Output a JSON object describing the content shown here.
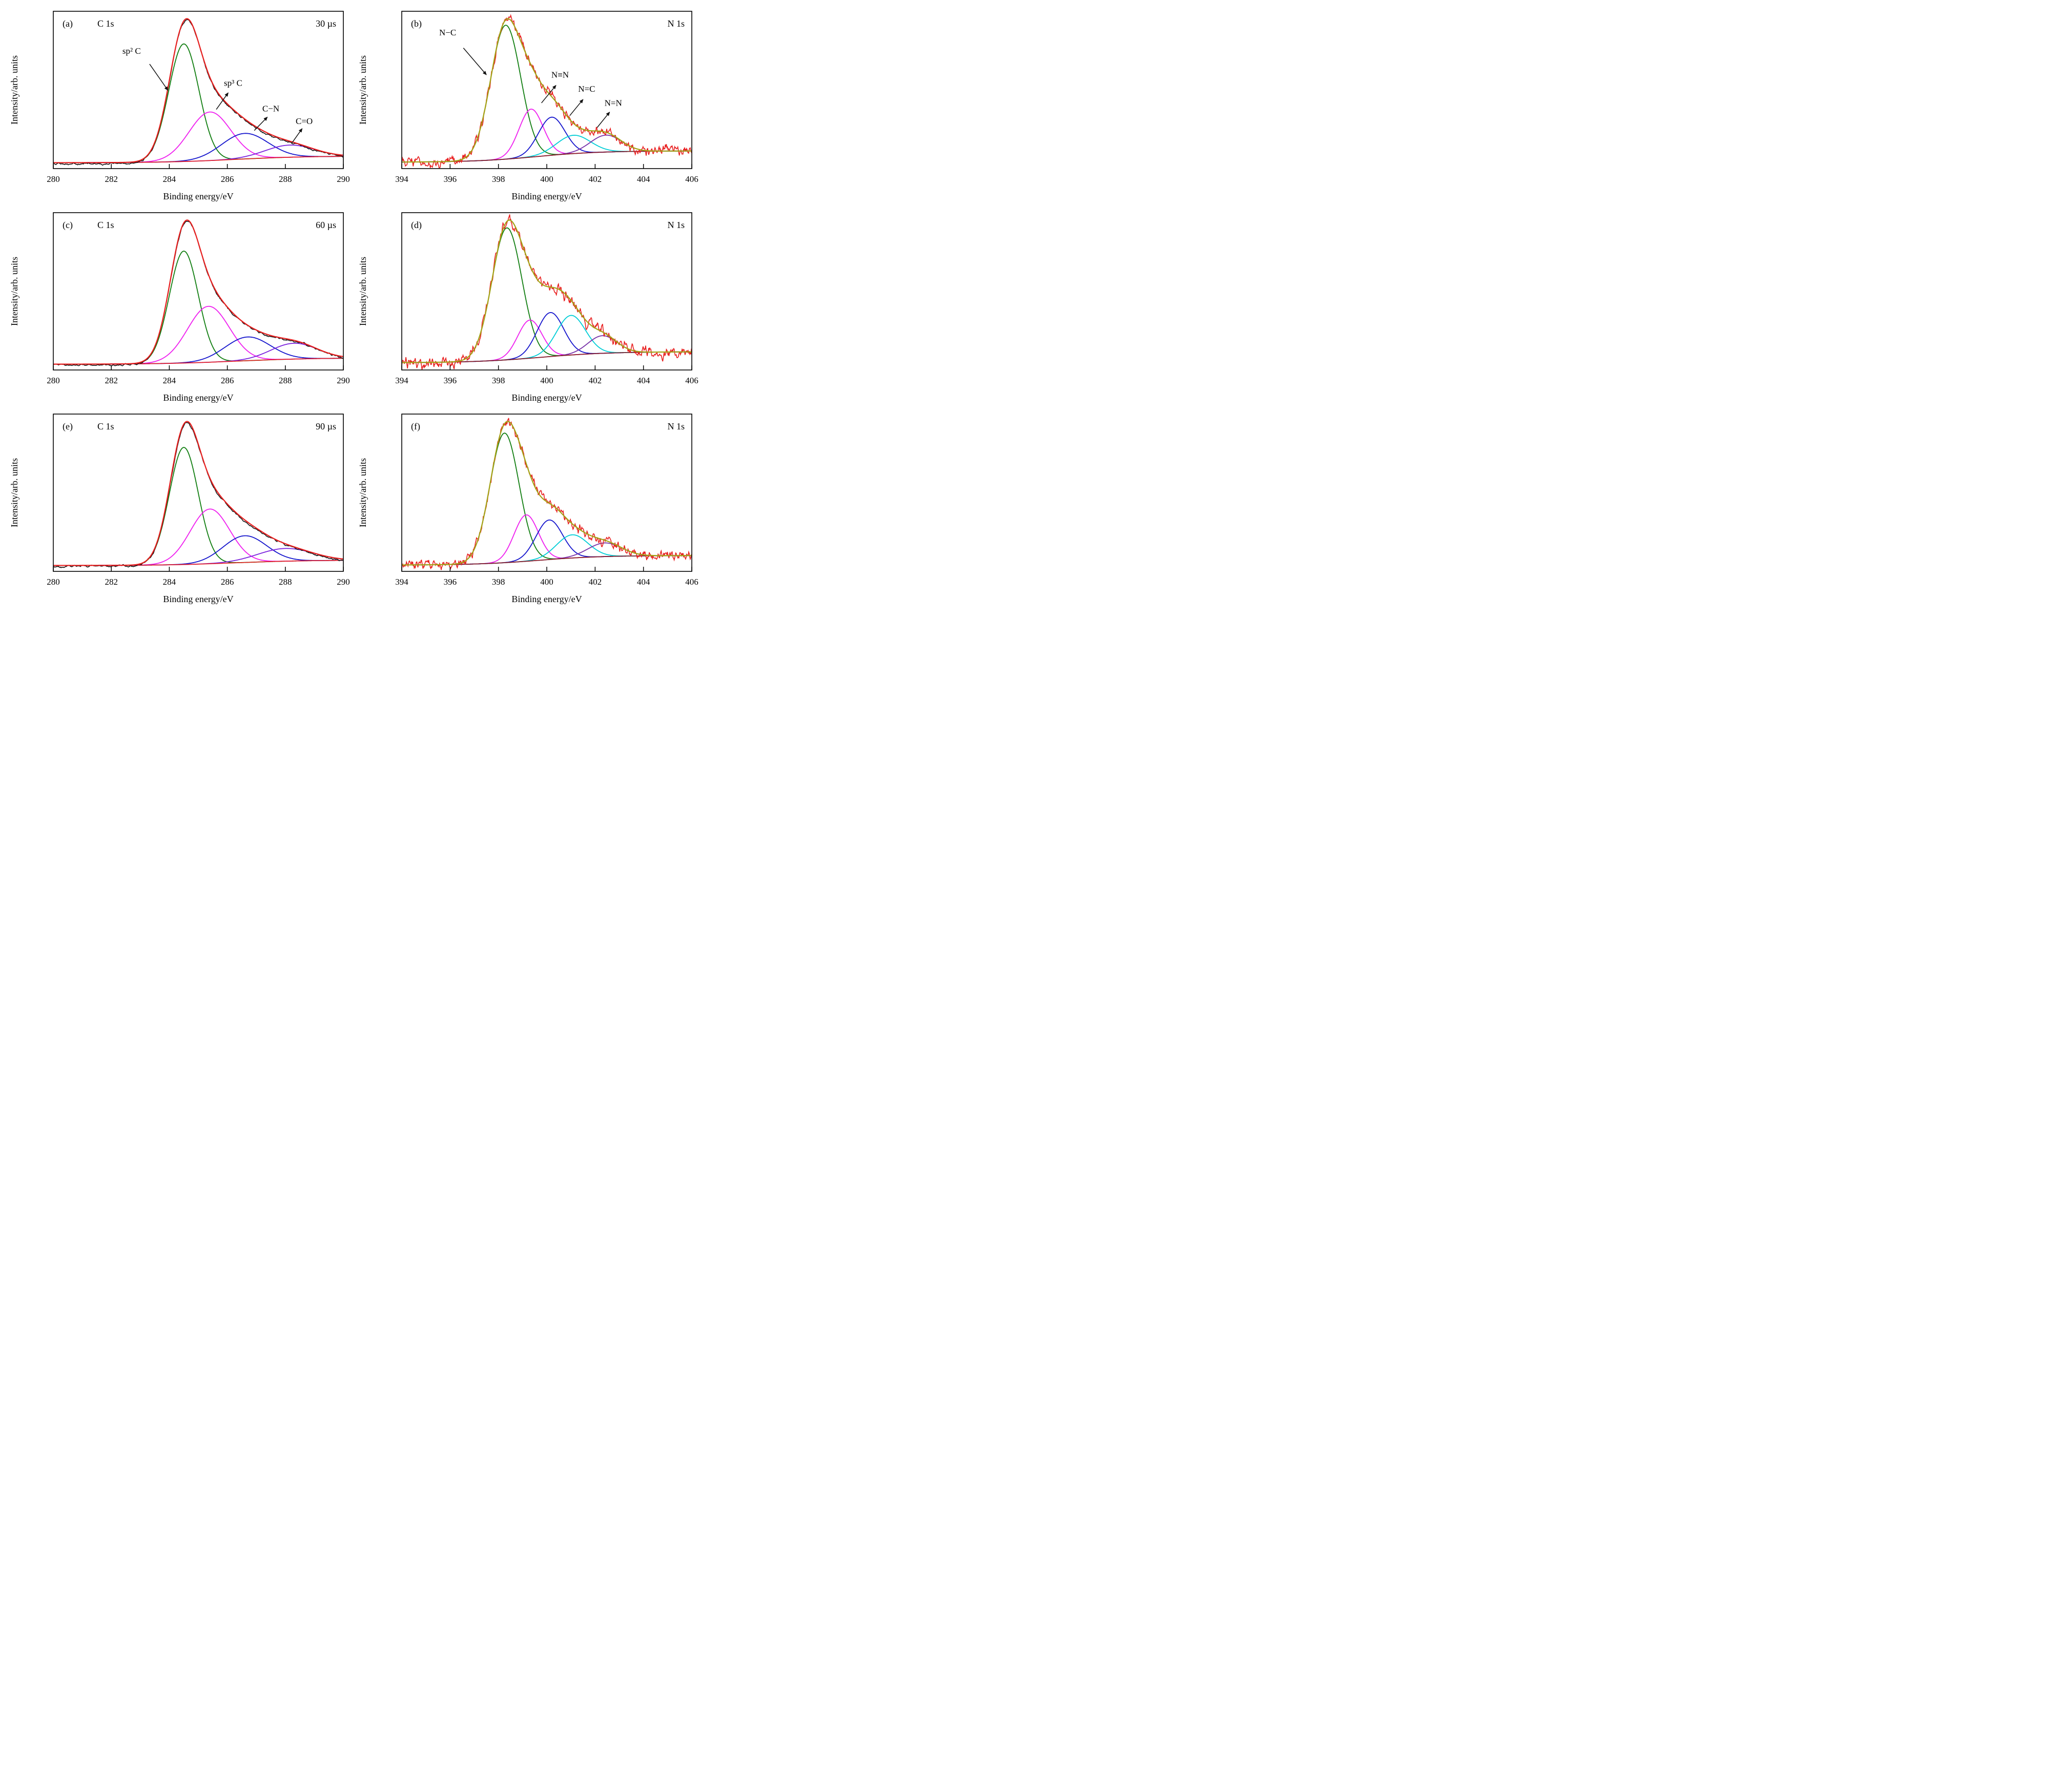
{
  "chart_data": [
    {
      "id": "a",
      "type": "line",
      "seed": 11,
      "panel_label": "(a)",
      "title": "C 1s",
      "corner_label": "30 µs",
      "xlabel": "Binding energy/eV",
      "ylabel": "Intensity/arb. units",
      "xlim": [
        280,
        290
      ],
      "xticks": [
        280,
        282,
        284,
        286,
        288,
        290
      ],
      "noise": {
        "fast_amp": 0.028,
        "fast_w": 2,
        "slow_amp": 0.06,
        "slow_w": 16
      },
      "data_offset": -0.008,
      "colors": {
        "data": "#161616",
        "envelope": "#e81e1e",
        "baseline": "#e81e1e"
      },
      "background": {
        "left": 0.018,
        "right": 0.07,
        "center": 286.3,
        "width": 1.2
      },
      "series": [
        {
          "name": "sp2-C",
          "label": "sp² C",
          "color": "#0f7d0f",
          "peak": {
            "center": 284.5,
            "sigma": 0.52,
            "amp": 0.92
          }
        },
        {
          "name": "sp3-C",
          "label": "sp³ C",
          "color": "#ef1fef",
          "peak": {
            "center": 285.4,
            "sigma": 0.72,
            "amp": 0.38
          }
        },
        {
          "name": "C-N",
          "label": "C−N",
          "color": "#1414cc",
          "peak": {
            "center": 286.6,
            "sigma": 0.8,
            "amp": 0.2
          }
        },
        {
          "name": "C=O",
          "label": "C=O",
          "color": "#7b22dd",
          "peak": {
            "center": 288.15,
            "sigma": 0.85,
            "amp": 0.095
          }
        }
      ],
      "annotations": [
        {
          "text": "sp² C",
          "x": 282.7,
          "y": 0.87,
          "arrow": [
            283.32,
            0.79,
            283.95,
            0.585
          ]
        },
        {
          "text": "sp³ C",
          "x": 286.2,
          "y": 0.62,
          "arrow": [
            285.62,
            0.435,
            286.03,
            0.565
          ]
        },
        {
          "text": "C−N",
          "x": 287.5,
          "y": 0.42,
          "arrow": [
            286.93,
            0.27,
            287.38,
            0.375
          ]
        },
        {
          "text": "C=O",
          "x": 288.65,
          "y": 0.32,
          "arrow": [
            288.22,
            0.17,
            288.58,
            0.285
          ]
        }
      ]
    },
    {
      "id": "b",
      "type": "line",
      "seed": 22,
      "panel_label": "(b)",
      "title": "",
      "corner_label": "N 1s",
      "xlabel": "Binding energy/eV",
      "ylabel": "Intensity/arb. units",
      "xlim": [
        394,
        406
      ],
      "xticks": [
        394,
        396,
        398,
        400,
        402,
        404,
        406
      ],
      "noise": {
        "fast_amp": 0.1,
        "fast_w": 1,
        "slow_amp": 0.12,
        "slow_w": 14
      },
      "data_offset": 0,
      "colors": {
        "data": "#e81e1e",
        "envelope": "#a3a316",
        "baseline": "#8b1d1d"
      },
      "background": {
        "left": 0.02,
        "right": 0.1,
        "center": 399.6,
        "width": 1.3
      },
      "series": [
        {
          "name": "N-C",
          "label": "N−C",
          "color": "#0f7d0f",
          "peak": {
            "center": 398.3,
            "sigma": 0.62,
            "amp": 0.95
          }
        },
        {
          "name": "N≡N",
          "label": "N≡N",
          "color": "#ef1fef",
          "peak": {
            "center": 399.35,
            "sigma": 0.5,
            "amp": 0.34
          }
        },
        {
          "name": "N=C",
          "label": "N=C",
          "color": "#1414cc",
          "peak": {
            "center": 400.2,
            "sigma": 0.55,
            "amp": 0.27
          }
        },
        {
          "name": "N-cyan",
          "label": "",
          "color": "#00cdd6",
          "peak": {
            "center": 401.1,
            "sigma": 0.7,
            "amp": 0.13
          }
        },
        {
          "name": "N=N",
          "label": "N=N",
          "color": "#7731a8",
          "peak": {
            "center": 402.45,
            "sigma": 0.65,
            "amp": 0.12
          }
        }
      ],
      "annotations": [
        {
          "text": "N−C",
          "x": 395.9,
          "y": 0.92,
          "arrow": [
            396.55,
            0.83,
            397.5,
            0.64
          ]
        },
        {
          "text": "N≡N",
          "x": 400.55,
          "y": 0.62,
          "arrow": [
            399.78,
            0.44,
            400.38,
            0.565
          ]
        },
        {
          "text": "N=C",
          "x": 401.65,
          "y": 0.52,
          "arrow": [
            400.95,
            0.35,
            401.5,
            0.465
          ]
        },
        {
          "text": "N=N",
          "x": 402.75,
          "y": 0.42,
          "arrow": [
            402.08,
            0.265,
            402.6,
            0.375
          ]
        }
      ]
    },
    {
      "id": "c",
      "type": "line",
      "seed": 33,
      "panel_label": "(c)",
      "title": "C 1s",
      "corner_label": "60 µs",
      "xlabel": "Binding energy/eV",
      "ylabel": "Intensity/arb. units",
      "xlim": [
        280,
        290
      ],
      "xticks": [
        280,
        282,
        284,
        286,
        288,
        290
      ],
      "noise": {
        "fast_amp": 0.028,
        "fast_w": 2,
        "slow_amp": 0.06,
        "slow_w": 16
      },
      "data_offset": -0.008,
      "colors": {
        "data": "#161616",
        "envelope": "#e81e1e",
        "baseline": "#e81e1e"
      },
      "background": {
        "left": 0.018,
        "right": 0.07,
        "center": 286.4,
        "width": 1.3
      },
      "series": [
        {
          "name": "sp2-C",
          "label": "sp² C",
          "color": "#0f7d0f",
          "peak": {
            "center": 284.5,
            "sigma": 0.5,
            "amp": 0.92
          }
        },
        {
          "name": "sp3-C",
          "label": "sp³ C",
          "color": "#ef1fef",
          "peak": {
            "center": 285.35,
            "sigma": 0.72,
            "amp": 0.46
          }
        },
        {
          "name": "C-N",
          "label": "C−N",
          "color": "#1414cc",
          "peak": {
            "center": 286.7,
            "sigma": 0.78,
            "amp": 0.195
          }
        },
        {
          "name": "C=O",
          "label": "C=O",
          "color": "#7b22dd",
          "peak": {
            "center": 288.3,
            "sigma": 0.8,
            "amp": 0.13
          }
        }
      ],
      "annotations": []
    },
    {
      "id": "d",
      "type": "line",
      "seed": 44,
      "panel_label": "(d)",
      "title": "",
      "corner_label": "N 1s",
      "xlabel": "Binding energy/eV",
      "ylabel": "Intensity/arb. units",
      "xlim": [
        394,
        406
      ],
      "xticks": [
        394,
        396,
        398,
        400,
        402,
        404,
        406
      ],
      "noise": {
        "fast_amp": 0.11,
        "fast_w": 1,
        "slow_amp": 0.14,
        "slow_w": 14
      },
      "data_offset": 0,
      "colors": {
        "data": "#e81e1e",
        "envelope": "#a3a316",
        "baseline": "#8b1d1d"
      },
      "background": {
        "left": 0.025,
        "right": 0.1,
        "center": 399.8,
        "width": 1.4
      },
      "series": [
        {
          "name": "N-C",
          "label": "N−C",
          "color": "#0f7d0f",
          "peak": {
            "center": 398.35,
            "sigma": 0.62,
            "amp": 0.9
          }
        },
        {
          "name": "N≡N",
          "label": "N≡N",
          "color": "#ef1fef",
          "peak": {
            "center": 399.3,
            "sigma": 0.5,
            "amp": 0.26
          }
        },
        {
          "name": "N=C",
          "label": "N=C",
          "color": "#1414cc",
          "peak": {
            "center": 400.15,
            "sigma": 0.55,
            "amp": 0.3
          }
        },
        {
          "name": "N-cyan",
          "label": "",
          "color": "#00cdd6",
          "peak": {
            "center": 401.0,
            "sigma": 0.6,
            "amp": 0.27
          }
        },
        {
          "name": "N=N",
          "label": "N=N",
          "color": "#7731a8",
          "peak": {
            "center": 402.3,
            "sigma": 0.6,
            "amp": 0.12
          }
        }
      ],
      "annotations": []
    },
    {
      "id": "e",
      "type": "line",
      "seed": 55,
      "panel_label": "(e)",
      "title": "C 1s",
      "corner_label": "90 µs",
      "xlabel": "Binding energy/eV",
      "ylabel": "Intensity/arb. units",
      "xlim": [
        280,
        290
      ],
      "xticks": [
        280,
        282,
        284,
        286,
        288,
        290
      ],
      "noise": {
        "fast_amp": 0.028,
        "fast_w": 2,
        "slow_amp": 0.06,
        "slow_w": 16
      },
      "data_offset": -0.008,
      "colors": {
        "data": "#161616",
        "envelope": "#e81e1e",
        "baseline": "#e81e1e"
      },
      "background": {
        "left": 0.018,
        "right": 0.06,
        "center": 286.3,
        "width": 1.2
      },
      "series": [
        {
          "name": "sp2-C",
          "label": "sp² C",
          "color": "#0f7d0f",
          "peak": {
            "center": 284.5,
            "sigma": 0.5,
            "amp": 0.92
          }
        },
        {
          "name": "sp3-C",
          "label": "sp³ C",
          "color": "#ef1fef",
          "peak": {
            "center": 285.4,
            "sigma": 0.68,
            "amp": 0.43
          }
        },
        {
          "name": "C-N",
          "label": "C−N",
          "color": "#1414cc",
          "peak": {
            "center": 286.6,
            "sigma": 0.75,
            "amp": 0.21
          }
        },
        {
          "name": "C=O",
          "label": "C=O",
          "color": "#7b22dd",
          "peak": {
            "center": 288.0,
            "sigma": 0.95,
            "amp": 0.1
          }
        }
      ],
      "annotations": []
    },
    {
      "id": "f",
      "type": "line",
      "seed": 66,
      "panel_label": "(f)",
      "title": "",
      "corner_label": "N 1s",
      "xlabel": "Binding energy/eV",
      "ylabel": "Intensity/arb. units",
      "xlim": [
        394,
        406
      ],
      "xticks": [
        394,
        396,
        398,
        400,
        402,
        404,
        406
      ],
      "noise": {
        "fast_amp": 0.1,
        "fast_w": 1,
        "slow_amp": 0.12,
        "slow_w": 14
      },
      "data_offset": 0,
      "colors": {
        "data": "#e81e1e",
        "envelope": "#a3a316",
        "baseline": "#8b1d1d"
      },
      "background": {
        "left": 0.02,
        "right": 0.09,
        "center": 399.7,
        "width": 1.3
      },
      "series": [
        {
          "name": "N-C",
          "label": "N−C",
          "color": "#0f7d0f",
          "peak": {
            "center": 398.25,
            "sigma": 0.6,
            "amp": 0.95
          }
        },
        {
          "name": "N≡N",
          "label": "N≡N",
          "color": "#ef1fef",
          "peak": {
            "center": 399.15,
            "sigma": 0.5,
            "amp": 0.34
          }
        },
        {
          "name": "N=C",
          "label": "N=C",
          "color": "#1414cc",
          "peak": {
            "center": 400.1,
            "sigma": 0.55,
            "amp": 0.29
          }
        },
        {
          "name": "N-cyan",
          "label": "",
          "color": "#00cdd6",
          "peak": {
            "center": 401.05,
            "sigma": 0.65,
            "amp": 0.17
          }
        },
        {
          "name": "N=N",
          "label": "N=N",
          "color": "#7731a8",
          "peak": {
            "center": 402.4,
            "sigma": 0.7,
            "amp": 0.1
          }
        }
      ],
      "annotations": []
    }
  ]
}
